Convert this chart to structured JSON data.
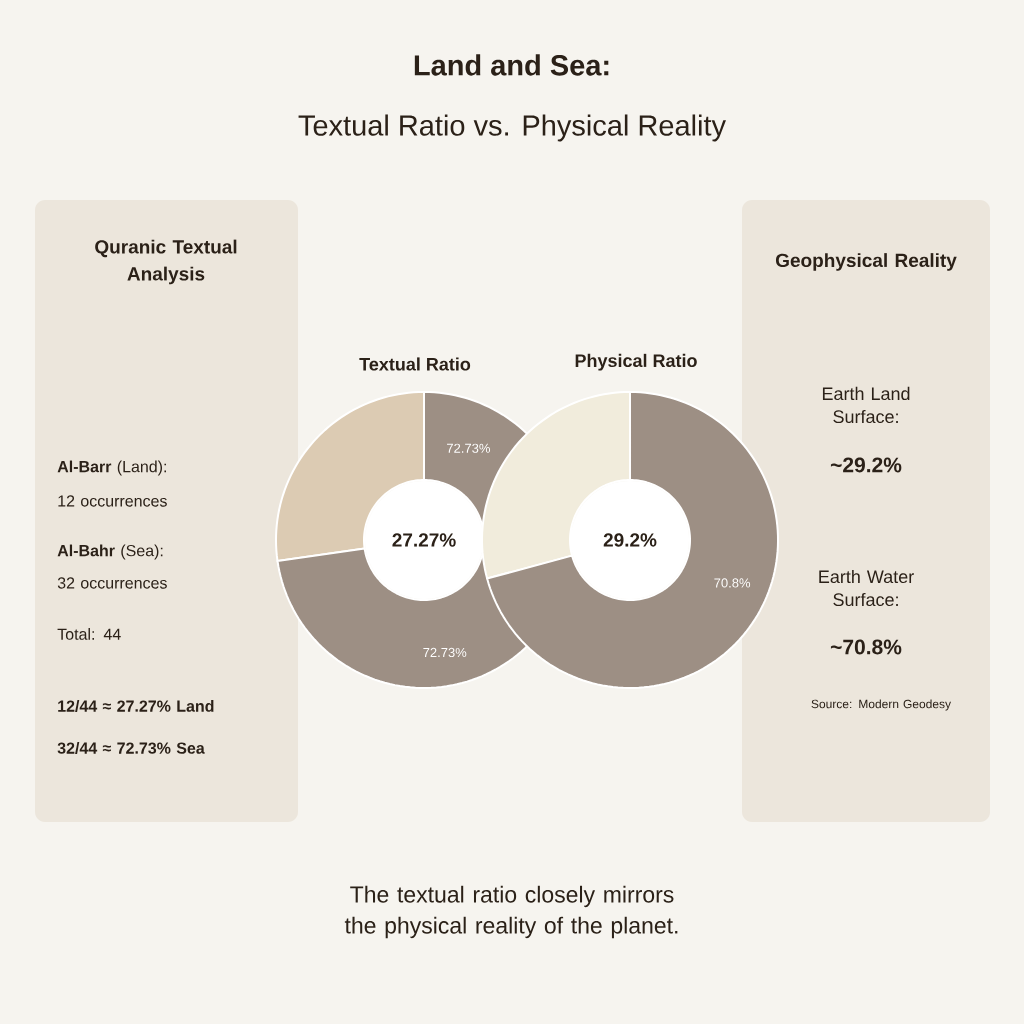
{
  "chart_data": [
    {
      "type": "other",
      "title": "Land and Sea:",
      "subtitle": "Textual Ratio vs. Physical Reality",
      "annotations": [
        "The textual ratio closely mirrors the physical reality of the planet."
      ]
    },
    {
      "type": "other",
      "title": "Quranic Textual Analysis",
      "annotations": [
        "**Al-Barr** (Land):",
        "12 occurrences",
        "**Al-Bahr** (Sea):",
        "32 occurrences",
        "Total: 44",
        "12/44 ≈ 27.27% Land",
        "32/44 ≈ 72.73% Sea"
      ]
    },
    {
      "type": "donut",
      "title": "Textual Ratio",
      "categories": [
        null,
        null
      ],
      "values": [
        27.27,
        72.73
      ],
      "colors": [
        "#dccbb3",
        "#9d8f84"
      ],
      "value_labels": [
        null,
        "72.73%"
      ],
      "annotations": [
        "27.27%",
        "72.73%"
      ]
    },
    {
      "type": "donut",
      "title": "Physical Ratio",
      "categories": [
        null,
        null
      ],
      "values": [
        29.2,
        70.8
      ],
      "colors": [
        "#f1ecdc",
        "#9d8f84"
      ],
      "value_labels": [
        null,
        "70.8%"
      ],
      "annotations": [
        "29.2%"
      ]
    },
    {
      "type": "other",
      "title": "Geophysical Reality",
      "annotations": [
        "Earth Land Surface:",
        "~29.2%",
        "Earth Water Surface:",
        "~70.8%",
        "Source: Modern Geodesy"
      ]
    }
  ]
}
